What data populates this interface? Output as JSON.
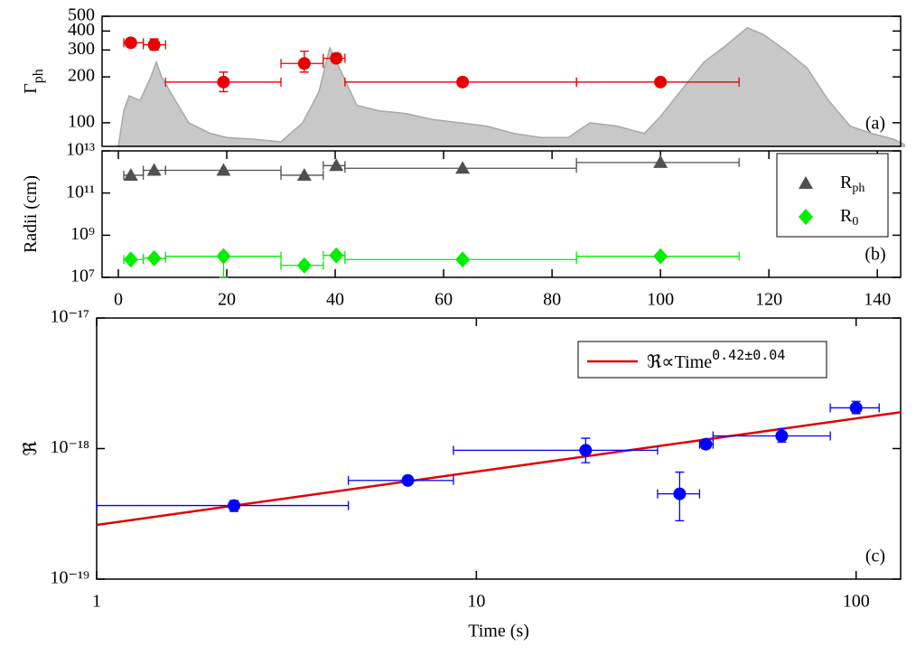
{
  "chart_data": [
    {
      "type": "scatter",
      "annotation": "(a)",
      "ylabel": "Γ",
      "ylabel_sub": "ph",
      "xlim": [
        -3,
        144.3
      ],
      "ylim": [
        70,
        500
      ],
      "log_y": true,
      "yticks": [
        100,
        200,
        300,
        400,
        500
      ],
      "area": {
        "color": "#c8c8c8",
        "x": [
          0,
          1,
          2,
          4,
          6,
          7,
          8,
          10,
          13,
          17,
          20,
          25,
          30,
          34,
          37,
          39,
          41,
          44,
          48,
          53,
          58,
          63,
          68,
          73,
          78,
          83,
          87,
          92,
          97,
          100,
          103,
          108,
          112,
          116,
          119,
          123,
          127,
          131,
          135,
          139,
          143,
          145
        ],
        "values": [
          70,
          120,
          150,
          140,
          200,
          250,
          200,
          150,
          100,
          85,
          80,
          78,
          75,
          100,
          160,
          310,
          220,
          130,
          120,
          115,
          105,
          100,
          95,
          85,
          80,
          80,
          100,
          95,
          85,
          110,
          150,
          250,
          320,
          420,
          380,
          300,
          230,
          140,
          95,
          85,
          78,
          72
        ]
      },
      "series": [
        {
          "color": "#e60000",
          "marker": "circle",
          "x": [
            2.3,
            6.6,
            19.4,
            34.3,
            40.2,
            63.5,
            100
          ],
          "x_lo": [
            1,
            4.6,
            8.7,
            30,
            37.8,
            41.8,
            84.5
          ],
          "x_hi": [
            4.6,
            8.7,
            30,
            37.8,
            41.8,
            84.5,
            114.5
          ],
          "values": [
            335,
            325,
            185,
            245,
            265,
            185,
            185
          ],
          "y_lo": [
            320,
            300,
            160,
            215,
            250,
            175,
            180
          ],
          "y_hi": [
            350,
            355,
            215,
            295,
            285,
            195,
            190
          ]
        }
      ]
    },
    {
      "type": "scatter",
      "annotation": "(b)",
      "ylabel": "Radii (cm)",
      "xlim": [
        -3,
        144.3
      ],
      "xticks": [
        0,
        20,
        40,
        60,
        80,
        100,
        120,
        140
      ],
      "ylim": [
        10000000.0,
        10000000000000.0
      ],
      "log_y": true,
      "yticks": [
        {
          "value": 10000000.0,
          "label": "10⁷"
        },
        {
          "value": 1000000000.0,
          "label": "10⁹"
        },
        {
          "value": 100000000000.0,
          "label": "10¹¹"
        },
        {
          "value": 10000000000000.0,
          "label": "10¹³"
        }
      ],
      "legend": "upper right",
      "series": [
        {
          "name": "R",
          "name_sub": "ph",
          "color": "#505050",
          "marker": "triangle",
          "x": [
            2.3,
            6.6,
            19.4,
            34.3,
            40.2,
            63.5,
            100
          ],
          "x_lo": [
            1,
            4.6,
            8.7,
            30,
            37.8,
            41.8,
            84.5
          ],
          "x_hi": [
            4.6,
            8.7,
            30,
            37.8,
            41.8,
            84.5,
            114.5
          ],
          "values": [
            700000000000.0,
            1200000000000.0,
            1200000000000.0,
            700000000000.0,
            2000000000000.0,
            1500000000000.0,
            2800000000000.0
          ]
        },
        {
          "name": "R",
          "name_sub": "0",
          "color": "#00ee00",
          "marker": "diamond",
          "x": [
            2.3,
            6.6,
            19.4,
            34.3,
            40.2,
            63.5,
            100
          ],
          "x_lo": [
            1,
            4.6,
            8.7,
            30,
            37.8,
            41.8,
            84.5
          ],
          "x_hi": [
            4.6,
            8.7,
            30,
            37.8,
            41.8,
            84.5,
            114.5
          ],
          "values": [
            70000000.0,
            80000000.0,
            100000000.0,
            37000000.0,
            110000000.0,
            70000000.0,
            100000000.0
          ],
          "y_lo": [
            55000000.0,
            60000000.0,
            10000000.0,
            25000000.0,
            85000000.0,
            50000000.0,
            85000000.0
          ],
          "y_hi": [
            85000000.0,
            110000000.0,
            150000000.0,
            55000000.0,
            150000000.0,
            90000000.0,
            120000000.0
          ]
        }
      ]
    },
    {
      "type": "scatter",
      "annotation": "(c)",
      "ylabel": "ℜ",
      "xlabel": "Time (s)",
      "xlim": [
        1,
        131
      ],
      "log_x": true,
      "xticks": [
        1,
        10,
        100
      ],
      "ylim": [
        1e-19,
        1e-17
      ],
      "log_y": true,
      "yticks": [
        {
          "value": 1e-19,
          "label": "10⁻¹⁹"
        },
        {
          "value": 1e-18,
          "label": "10⁻¹⁸"
        },
        {
          "value": 1e-17,
          "label": "10⁻¹⁷"
        }
      ],
      "legend": "upper right",
      "series": [
        {
          "color": "#0000ff",
          "marker": "circle",
          "x": [
            2.3,
            6.6,
            19.4,
            34.3,
            40.2,
            63.7,
            100
          ],
          "x_lo": [
            1,
            4.6,
            8.7,
            30,
            38.7,
            42,
            85.5
          ],
          "x_hi": [
            4.6,
            8.7,
            30,
            38.7,
            42,
            85.5,
            115
          ],
          "values": [
            3.66e-19,
            5.7e-19,
            9.7e-19,
            4.5e-19,
            1.08e-18,
            1.25e-18,
            2.05e-18
          ],
          "y_lo": [
            3.3e-19,
            5.4e-19,
            7.8e-19,
            2.8e-19,
            1e-18,
            1.12e-18,
            1.85e-18
          ],
          "y_hi": [
            4e-19,
            6e-19,
            1.2e-18,
            6.6e-19,
            1.17e-18,
            1.42e-18,
            2.3e-18
          ]
        }
      ],
      "fit": {
        "name": "ℜ∝Time",
        "name_sup": "0.42±0.04",
        "color": "#e00000",
        "x": [
          1,
          131
        ],
        "values": [
          2.6e-19,
          1.9e-18
        ]
      }
    }
  ]
}
